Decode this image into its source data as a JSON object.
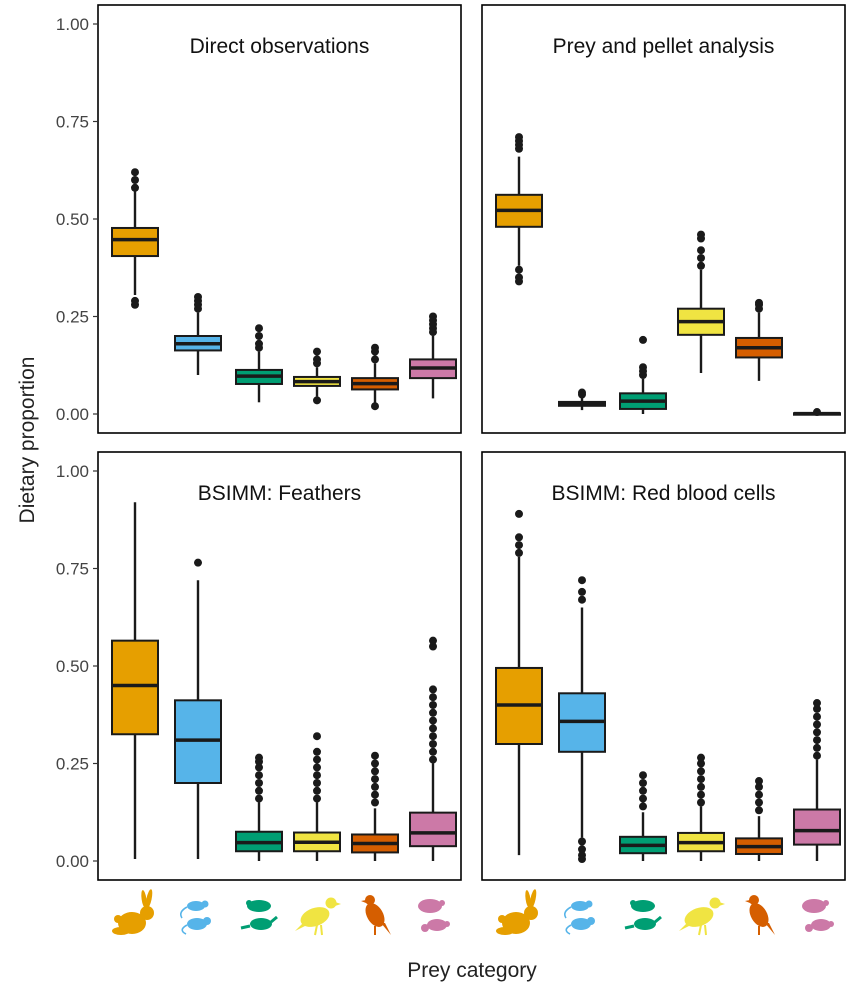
{
  "chart_data": {
    "type": "box",
    "ylabel": "Dietary proportion",
    "xlabel": "Prey category",
    "ylim": [
      0,
      1
    ],
    "yticks": [
      0,
      0.25,
      0.5,
      0.75,
      1.0
    ],
    "ytick_labels": [
      "0.00",
      "0.25",
      "0.50",
      "0.75",
      "1.00"
    ],
    "categories": [
      "rabbit",
      "rodent",
      "small-mammal",
      "gamebird",
      "passerine",
      "herptile"
    ],
    "colors": [
      "#E69F00",
      "#56B4E9",
      "#009E73",
      "#F0E442",
      "#D55E00",
      "#CC79A7"
    ],
    "panels": [
      {
        "title": "Direct observations",
        "boxes": [
          {
            "q1": 0.405,
            "median": 0.447,
            "q3": 0.477,
            "lo": 0.305,
            "hi": 0.58,
            "outliers": [
              0.29,
              0.28,
              0.58,
              0.6,
              0.62
            ]
          },
          {
            "q1": 0.163,
            "median": 0.18,
            "q3": 0.2,
            "lo": 0.1,
            "hi": 0.26,
            "outliers": [
              0.27,
              0.28,
              0.29,
              0.3
            ]
          },
          {
            "q1": 0.077,
            "median": 0.097,
            "q3": 0.113,
            "lo": 0.03,
            "hi": 0.16,
            "outliers": [
              0.17,
              0.18,
              0.2,
              0.22
            ]
          },
          {
            "q1": 0.072,
            "median": 0.083,
            "q3": 0.095,
            "lo": 0.045,
            "hi": 0.12,
            "outliers": [
              0.035,
              0.13,
              0.14,
              0.16
            ]
          },
          {
            "q1": 0.063,
            "median": 0.078,
            "q3": 0.092,
            "lo": 0.025,
            "hi": 0.13,
            "outliers": [
              0.02,
              0.14,
              0.16,
              0.17
            ]
          },
          {
            "q1": 0.092,
            "median": 0.118,
            "q3": 0.14,
            "lo": 0.04,
            "hi": 0.2,
            "outliers": [
              0.21,
              0.22,
              0.23,
              0.24,
              0.25
            ]
          }
        ]
      },
      {
        "title": "Prey and pellet analysis",
        "boxes": [
          {
            "q1": 0.48,
            "median": 0.522,
            "q3": 0.562,
            "lo": 0.38,
            "hi": 0.66,
            "outliers": [
              0.34,
              0.35,
              0.37,
              0.68,
              0.69,
              0.7,
              0.71
            ]
          },
          {
            "q1": 0.021,
            "median": 0.026,
            "q3": 0.031,
            "lo": 0.01,
            "hi": 0.045,
            "outliers": [
              0.05,
              0.055
            ]
          },
          {
            "q1": 0.013,
            "median": 0.033,
            "q3": 0.053,
            "lo": 0.0,
            "hi": 0.09,
            "outliers": [
              0.1,
              0.11,
              0.12,
              0.19
            ]
          },
          {
            "q1": 0.203,
            "median": 0.237,
            "q3": 0.27,
            "lo": 0.105,
            "hi": 0.37,
            "outliers": [
              0.38,
              0.4,
              0.42,
              0.45,
              0.46
            ]
          },
          {
            "q1": 0.145,
            "median": 0.17,
            "q3": 0.195,
            "lo": 0.085,
            "hi": 0.26,
            "outliers": [
              0.27,
              0.28,
              0.285
            ]
          },
          {
            "q1": 0.0,
            "median": 0.001,
            "q3": 0.002,
            "lo": 0.0,
            "hi": 0.004,
            "outliers": [
              0.005
            ]
          }
        ]
      },
      {
        "title": "BSIMM: Feathers",
        "boxes": [
          {
            "q1": 0.325,
            "median": 0.45,
            "q3": 0.565,
            "lo": 0.005,
            "hi": 0.92,
            "outliers": []
          },
          {
            "q1": 0.2,
            "median": 0.31,
            "q3": 0.412,
            "lo": 0.005,
            "hi": 0.72,
            "outliers": [
              0.765
            ]
          },
          {
            "q1": 0.025,
            "median": 0.047,
            "q3": 0.075,
            "lo": 0.0,
            "hi": 0.15,
            "outliers": [
              0.16,
              0.18,
              0.2,
              0.22,
              0.24,
              0.255,
              0.265
            ]
          },
          {
            "q1": 0.025,
            "median": 0.048,
            "q3": 0.073,
            "lo": 0.0,
            "hi": 0.15,
            "outliers": [
              0.16,
              0.18,
              0.2,
              0.22,
              0.24,
              0.26,
              0.28,
              0.32
            ]
          },
          {
            "q1": 0.022,
            "median": 0.045,
            "q3": 0.068,
            "lo": 0.0,
            "hi": 0.135,
            "outliers": [
              0.15,
              0.17,
              0.19,
              0.21,
              0.23,
              0.25,
              0.27
            ]
          },
          {
            "q1": 0.038,
            "median": 0.072,
            "q3": 0.124,
            "lo": 0.0,
            "hi": 0.25,
            "outliers": [
              0.26,
              0.28,
              0.3,
              0.32,
              0.34,
              0.36,
              0.38,
              0.4,
              0.42,
              0.44,
              0.55,
              0.565
            ]
          }
        ]
      },
      {
        "title": "BSIMM: Red blood cells",
        "boxes": [
          {
            "q1": 0.3,
            "median": 0.4,
            "q3": 0.495,
            "lo": 0.015,
            "hi": 0.78,
            "outliers": [
              0.79,
              0.81,
              0.83,
              0.89
            ]
          },
          {
            "q1": 0.28,
            "median": 0.358,
            "q3": 0.43,
            "lo": 0.06,
            "hi": 0.65,
            "outliers": [
              0.005,
              0.015,
              0.03,
              0.05,
              0.67,
              0.69,
              0.72
            ]
          },
          {
            "q1": 0.02,
            "median": 0.04,
            "q3": 0.062,
            "lo": 0.0,
            "hi": 0.125,
            "outliers": [
              0.14,
              0.16,
              0.18,
              0.2,
              0.22
            ]
          },
          {
            "q1": 0.025,
            "median": 0.047,
            "q3": 0.072,
            "lo": 0.0,
            "hi": 0.14,
            "outliers": [
              0.15,
              0.17,
              0.19,
              0.21,
              0.23,
              0.25,
              0.265
            ]
          },
          {
            "q1": 0.018,
            "median": 0.037,
            "q3": 0.058,
            "lo": 0.0,
            "hi": 0.115,
            "outliers": [
              0.13,
              0.15,
              0.17,
              0.19,
              0.205
            ]
          },
          {
            "q1": 0.042,
            "median": 0.078,
            "q3": 0.132,
            "lo": 0.0,
            "hi": 0.26,
            "outliers": [
              0.27,
              0.29,
              0.31,
              0.33,
              0.35,
              0.37,
              0.39,
              0.405
            ]
          }
        ]
      }
    ]
  }
}
